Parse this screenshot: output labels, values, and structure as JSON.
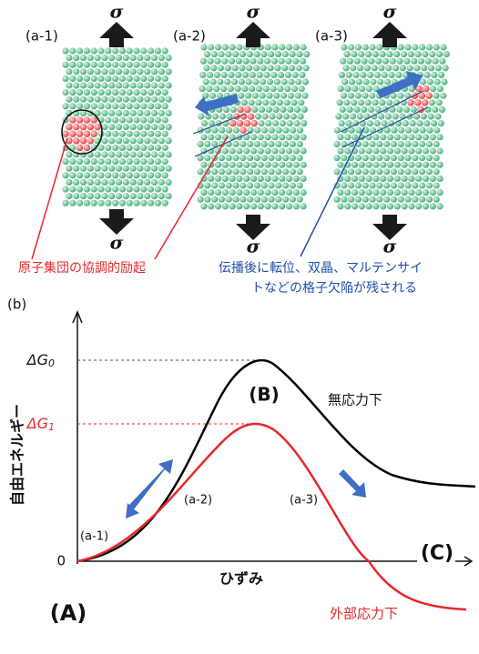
{
  "panels": [
    {
      "label": "(a-1)",
      "stress_top": "σ",
      "stress_bottom": "σ"
    },
    {
      "label": "(a-2)",
      "stress_top": "σ",
      "stress_bottom": "σ"
    },
    {
      "label": "(a-3)",
      "stress_top": "σ",
      "stress_bottom": "σ"
    }
  ],
  "annotations": {
    "excitation": "原子集団の協調的励起",
    "defects": [
      "伝播後に転位、双晶、マルテンサイ",
      "トなどの格子欠陥が残される"
    ]
  },
  "graph": {
    "label": "(b)",
    "y_axis_label": "自由エネルギー",
    "x_axis_label": "ひずみ",
    "origin": "0",
    "delta_g0": {
      "main": "ΔG",
      "sub": "0"
    },
    "delta_g1": {
      "main": "ΔG",
      "sub": "1"
    },
    "state_a": "(A)",
    "state_b": "(B)",
    "state_c": "(C)",
    "no_stress": "無応力下",
    "external_stress": "外部応力下",
    "points": [
      "(a-1)",
      "(a-2)",
      "(a-3)"
    ]
  }
}
